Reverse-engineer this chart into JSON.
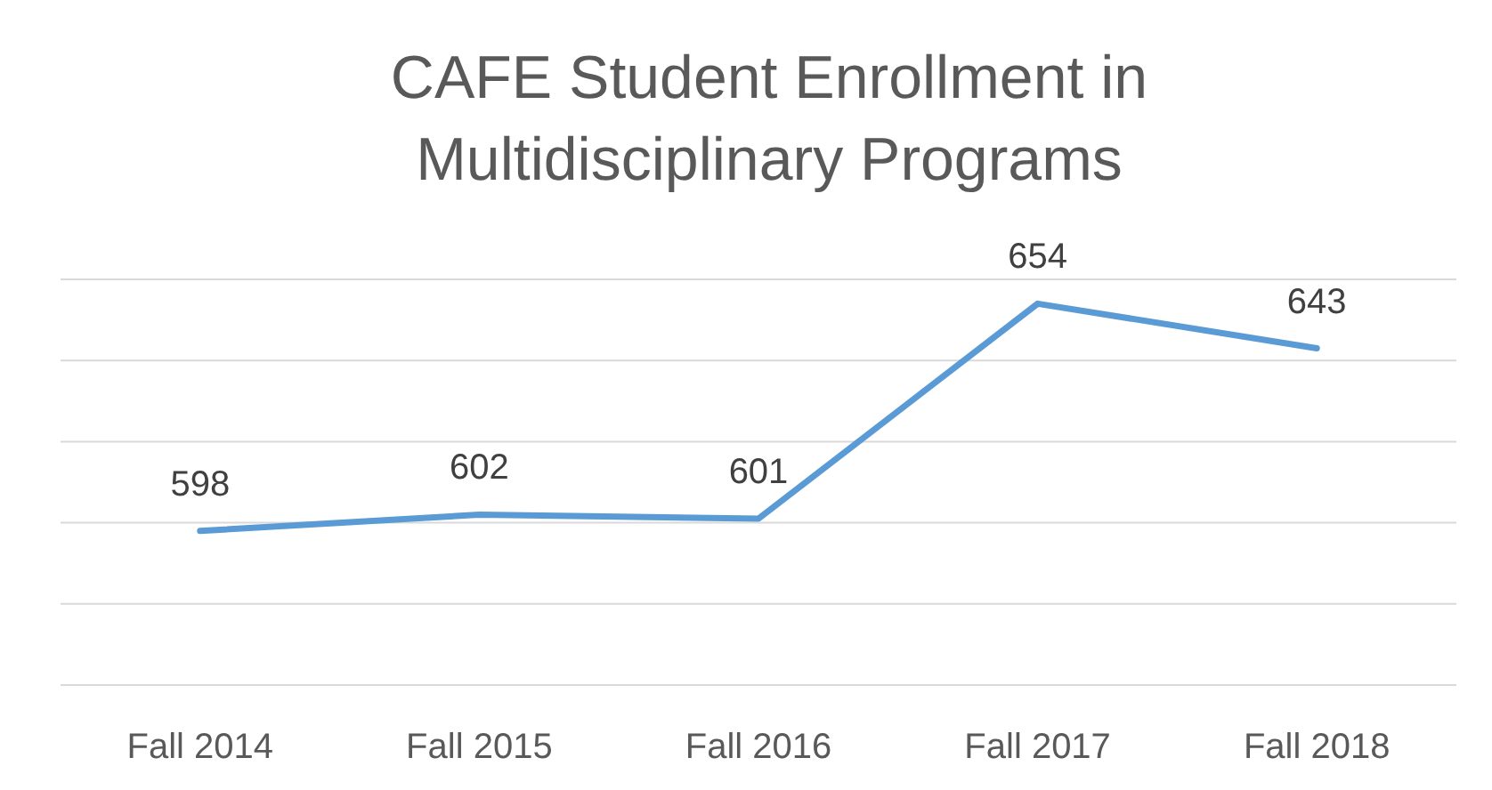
{
  "chart_data": {
    "type": "line",
    "title": "CAFE Student Enrollment in Multidisciplinary Programs",
    "categories": [
      "Fall 2014",
      "Fall 2015",
      "Fall 2016",
      "Fall 2017",
      "Fall 2018"
    ],
    "series": [
      {
        "color": "#5b9bd5",
        "values": [
          598,
          602,
          601,
          654,
          643
        ]
      }
    ],
    "ylim": [
      560,
      660
    ],
    "yticks": [
      {
        "value": 560,
        "label": null
      },
      {
        "value": 580,
        "label": null
      },
      {
        "value": 600,
        "label": null
      },
      {
        "value": 620,
        "label": null
      },
      {
        "value": 640,
        "label": null
      },
      {
        "value": 660,
        "label": null
      }
    ],
    "tick_labels": "x",
    "grid": "y",
    "data_labels": true,
    "marker": "none",
    "line_style": "solid"
  }
}
